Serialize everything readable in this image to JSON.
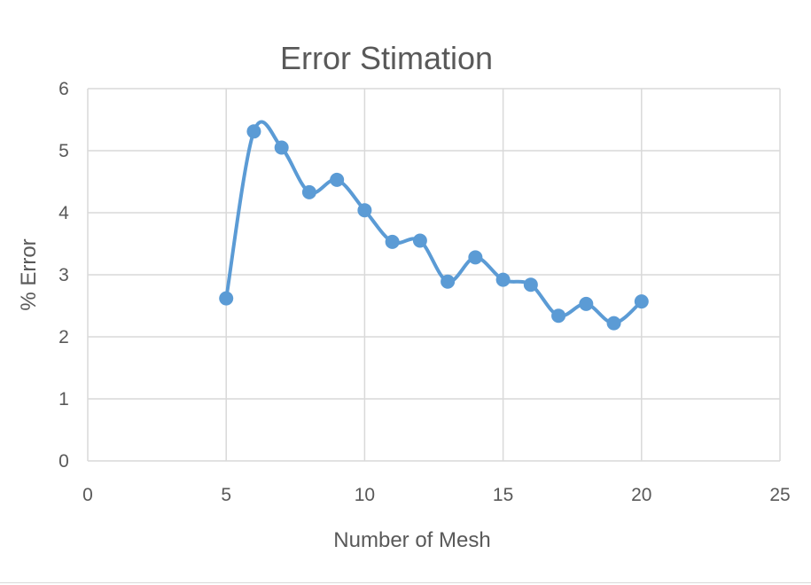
{
  "chart_data": {
    "type": "scatter",
    "title": "Error Stimation",
    "xlabel": "Number of Mesh",
    "ylabel": "% Error",
    "xlim": [
      0,
      25
    ],
    "ylim": [
      0,
      6
    ],
    "x_ticks": [
      0,
      5,
      10,
      15,
      20,
      25
    ],
    "y_ticks": [
      0,
      1,
      2,
      3,
      4,
      5,
      6
    ],
    "grid": true,
    "legend": "none",
    "smoothed_line": true,
    "color": "#5b9bd5",
    "series": [
      {
        "x": [
          5,
          6,
          7,
          8,
          9,
          10,
          11,
          12,
          13,
          14,
          15,
          16,
          17,
          18,
          19,
          20
        ],
        "y": [
          2.62,
          5.31,
          5.05,
          4.33,
          4.53,
          4.04,
          3.53,
          3.55,
          2.89,
          3.28,
          2.92,
          2.84,
          2.34,
          2.53,
          2.22,
          2.57
        ]
      }
    ]
  }
}
